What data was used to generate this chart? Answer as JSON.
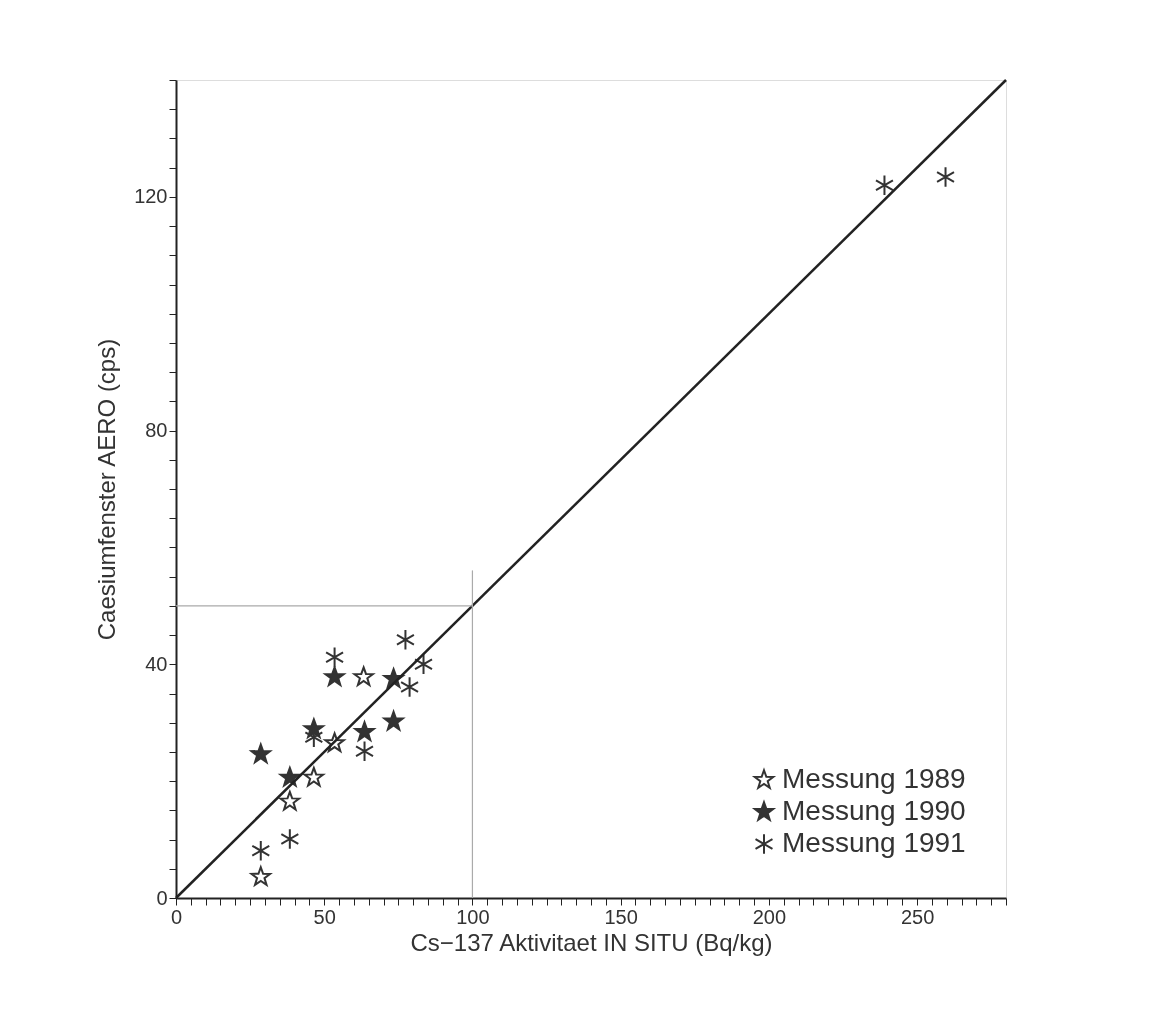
{
  "chart_data": {
    "type": "scatter",
    "xlabel": "Cs−137 Aktivitaet IN SITU (Bq/kg)",
    "ylabel": "Caesiumfenster AERO (cps)",
    "xlim": [
      0,
      280
    ],
    "ylim": [
      0,
      140
    ],
    "xticks": [
      0,
      {
        "value": 5,
        "label": null
      },
      {
        "value": 10,
        "label": null
      },
      {
        "value": 15,
        "label": null
      },
      {
        "value": 20,
        "label": null
      },
      {
        "value": 25,
        "label": null
      },
      {
        "value": 30,
        "label": null
      },
      {
        "value": 35,
        "label": null
      },
      {
        "value": 40,
        "label": null
      },
      {
        "value": 45,
        "label": null
      },
      50,
      {
        "value": 55,
        "label": null
      },
      {
        "value": 60,
        "label": null
      },
      {
        "value": 65,
        "label": null
      },
      {
        "value": 70,
        "label": null
      },
      {
        "value": 75,
        "label": null
      },
      {
        "value": 80,
        "label": null
      },
      {
        "value": 85,
        "label": null
      },
      {
        "value": 90,
        "label": null
      },
      {
        "value": 95,
        "label": null
      },
      100,
      {
        "value": 105,
        "label": null
      },
      {
        "value": 110,
        "label": null
      },
      {
        "value": 115,
        "label": null
      },
      {
        "value": 120,
        "label": null
      },
      {
        "value": 125,
        "label": null
      },
      {
        "value": 130,
        "label": null
      },
      {
        "value": 135,
        "label": null
      },
      {
        "value": 140,
        "label": null
      },
      {
        "value": 145,
        "label": null
      },
      150,
      {
        "value": 155,
        "label": null
      },
      {
        "value": 160,
        "label": null
      },
      {
        "value": 165,
        "label": null
      },
      {
        "value": 170,
        "label": null
      },
      {
        "value": 175,
        "label": null
      },
      {
        "value": 180,
        "label": null
      },
      {
        "value": 185,
        "label": null
      },
      {
        "value": 190,
        "label": null
      },
      {
        "value": 195,
        "label": null
      },
      200,
      {
        "value": 205,
        "label": null
      },
      {
        "value": 210,
        "label": null
      },
      {
        "value": 215,
        "label": null
      },
      {
        "value": 220,
        "label": null
      },
      {
        "value": 225,
        "label": null
      },
      {
        "value": 230,
        "label": null
      },
      {
        "value": 235,
        "label": null
      },
      {
        "value": 240,
        "label": null
      },
      {
        "value": 245,
        "label": null
      },
      250,
      {
        "value": 255,
        "label": null
      },
      {
        "value": 260,
        "label": null
      },
      {
        "value": 265,
        "label": null
      },
      {
        "value": 270,
        "label": null
      },
      {
        "value": 275,
        "label": null
      },
      {
        "value": 280,
        "label": null
      }
    ],
    "yticks": [
      0,
      {
        "value": 5,
        "label": null
      },
      {
        "value": 10,
        "label": null
      },
      {
        "value": 15,
        "label": null
      },
      {
        "value": 20,
        "label": null
      },
      {
        "value": 25,
        "label": null
      },
      {
        "value": 30,
        "label": null
      },
      {
        "value": 35,
        "label": null
      },
      40,
      {
        "value": 45,
        "label": null
      },
      {
        "value": 50,
        "label": null
      },
      {
        "value": 55,
        "label": null
      },
      {
        "value": 60,
        "label": null
      },
      {
        "value": 65,
        "label": null
      },
      {
        "value": 70,
        "label": null
      },
      {
        "value": 75,
        "label": null
      },
      80,
      {
        "value": 85,
        "label": null
      },
      {
        "value": 90,
        "label": null
      },
      {
        "value": 95,
        "label": null
      },
      {
        "value": 100,
        "label": null
      },
      {
        "value": 105,
        "label": null
      },
      {
        "value": 110,
        "label": null
      },
      {
        "value": 115,
        "label": null
      },
      120,
      {
        "value": 125,
        "label": null
      },
      {
        "value": 130,
        "label": null
      },
      {
        "value": 135,
        "label": null
      },
      {
        "value": 140,
        "label": null
      }
    ],
    "grid": false,
    "legend": "bottom right",
    "series": [
      {
        "name": "Messung 1989",
        "color": "#333333",
        "marker": "star_open",
        "x": [
          28.6,
          38.4,
          46.5,
          53.5,
          63.3
        ],
        "values": [
          3.6,
          16.5,
          20.6,
          26.5,
          37.8
        ]
      },
      {
        "name": "Messung 1990",
        "color": "#333333",
        "marker": "star",
        "x": [
          28.6,
          38.4,
          46.5,
          53.5,
          63.6,
          73.4,
          73.4
        ],
        "values": [
          24.6,
          20.6,
          28.9,
          37.8,
          28.4,
          30.2,
          37.5
        ]
      },
      {
        "name": "Messung 1991",
        "color": "#333333",
        "marker": "cross",
        "x": [
          28.6,
          38.4,
          46.5,
          53.5,
          63.6,
          77.4,
          78.8,
          83.5,
          239,
          259.6
        ],
        "values": [
          8.1,
          10.1,
          27.5,
          41.2,
          25.1,
          44.2,
          36.1,
          40.0,
          122,
          123.4
        ]
      },
      {
        "type": "line",
        "color": "#222222",
        "x": [
          0,
          280
        ],
        "values": [
          0,
          140
        ]
      },
      {
        "type": "line",
        "color": "#aaaaaa",
        "x": [
          0,
          100,
          100,
          100
        ],
        "values": [
          50,
          50,
          56,
          0
        ]
      }
    ]
  }
}
